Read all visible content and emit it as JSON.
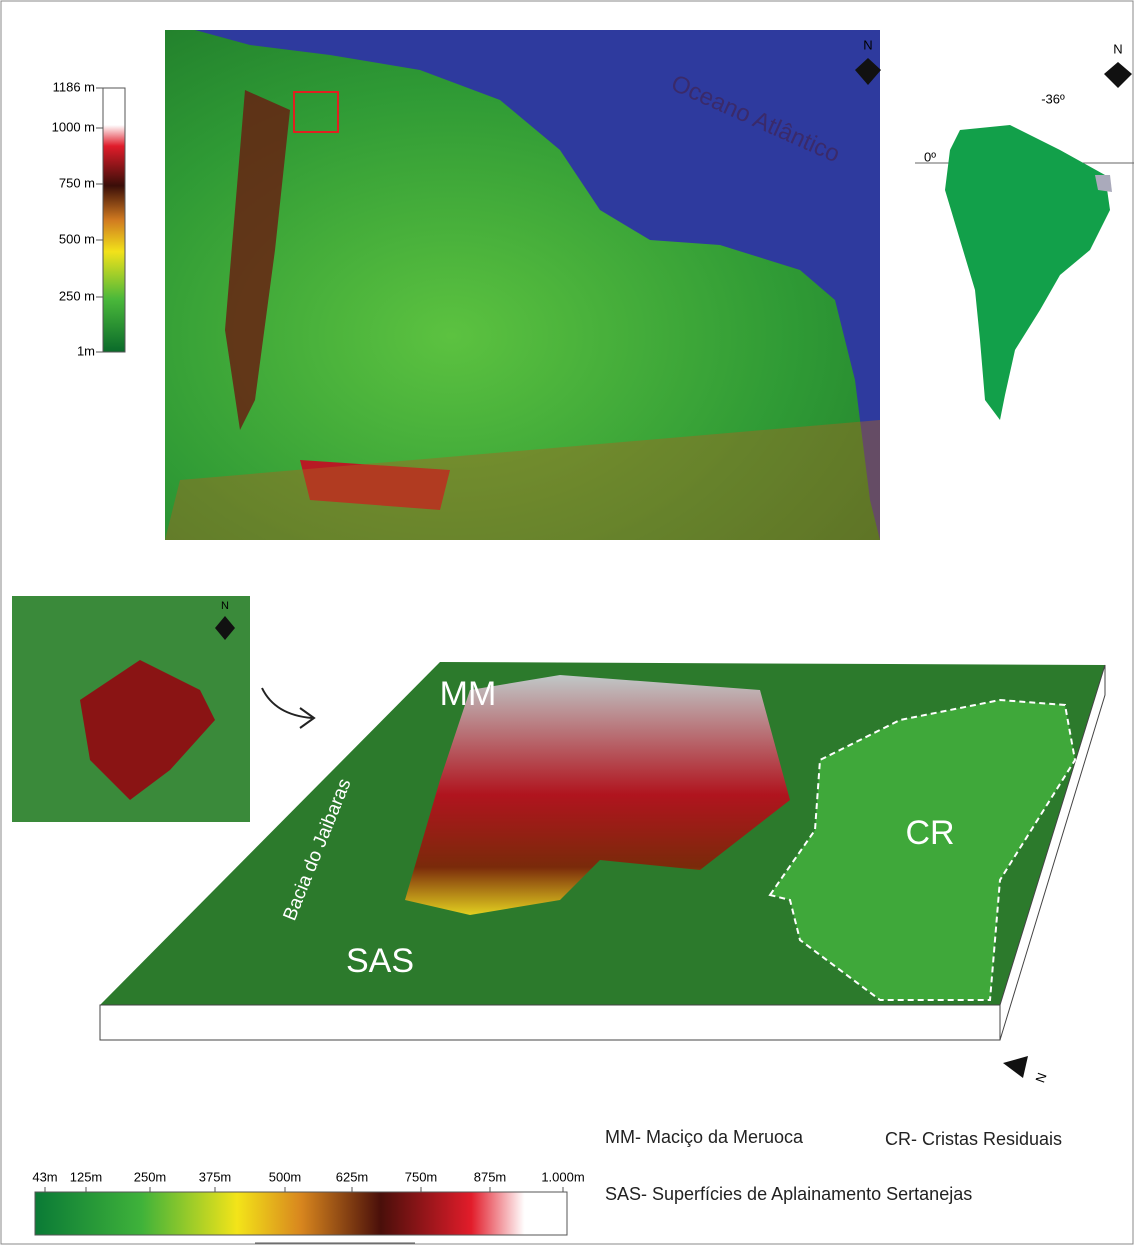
{
  "elevation_legend": {
    "labels": [
      "1186 m",
      "1000 m",
      "750 m",
      "500 m",
      "250 m",
      "1m"
    ]
  },
  "main_map": {
    "ocean_label": "Oceano Atlântico",
    "north": "N"
  },
  "inset_map": {
    "north": "N",
    "longitude": "-36º",
    "latitude": "0º"
  },
  "detail_map": {
    "north": "N"
  },
  "block_diagram": {
    "mm": "MM",
    "sas": "SAS",
    "cr": "CR",
    "basin": "Bacia do Jaibaras",
    "north": "N"
  },
  "key": {
    "mm": "MM- Maciço da Meruoca",
    "cr": "CR- Cristas Residuais",
    "sas": "SAS- Superfícies de Aplainamento Sertanejas"
  },
  "color_scale": {
    "labels": [
      "43m",
      "125m",
      "250m",
      "375m",
      "500m",
      "625m",
      "750m",
      "875m",
      "1.000m"
    ]
  }
}
